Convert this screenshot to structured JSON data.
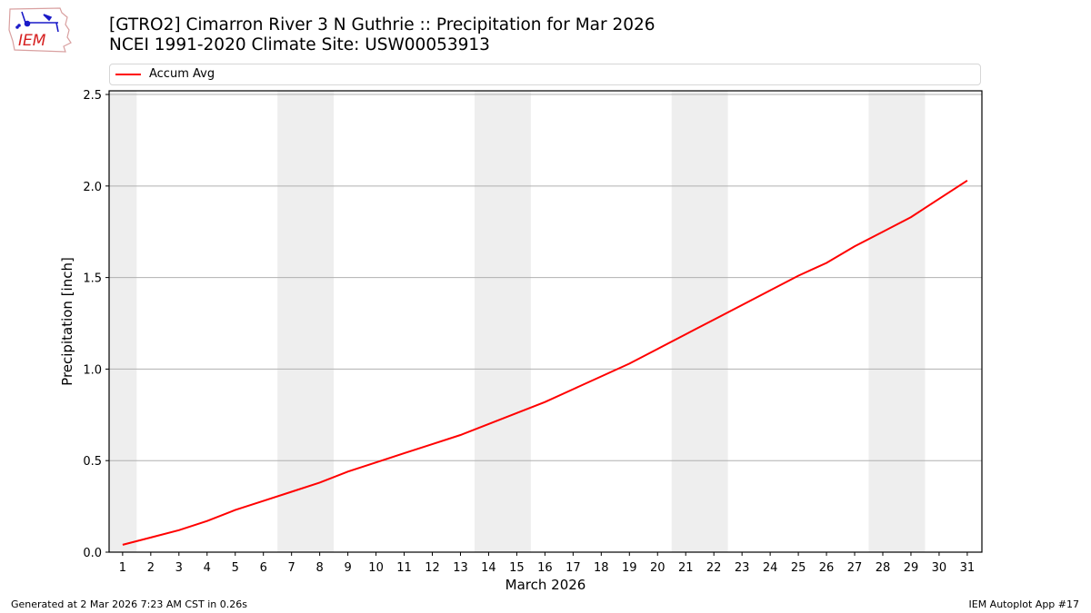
{
  "header": {
    "title_line1": "[GTRO2] Cimarron River 3 N Guthrie :: Precipitation for Mar 2026",
    "title_line2": "NCEI 1991-2020 Climate Site: USW00053913",
    "logo_text": "IEM"
  },
  "legend": {
    "entries": [
      {
        "label": "Accum Avg",
        "color": "#ff0000"
      }
    ]
  },
  "footer": {
    "generated": "Generated at 2 Mar 2026 7:23 AM CST in 0.26s",
    "app": "IEM Autoplot App #17"
  },
  "colors": {
    "line": "#ff0000",
    "weekend_band": "#eeeeee",
    "grid": "#b0b0b0"
  },
  "chart_data": {
    "type": "line",
    "title": "[GTRO2] Cimarron River 3 N Guthrie :: Precipitation for Mar 2026",
    "subtitle": "NCEI 1991-2020 Climate Site: USW00053913",
    "xlabel": "March 2026",
    "ylabel": "Precipitation [inch]",
    "ylim": [
      0,
      2.52
    ],
    "yticks": [
      0.0,
      0.5,
      1.0,
      1.5,
      2.0,
      2.5
    ],
    "ytick_labels": [
      "0.0",
      "0.5",
      "1.0",
      "1.5",
      "2.0",
      "2.5"
    ],
    "x": [
      1,
      2,
      3,
      4,
      5,
      6,
      7,
      8,
      9,
      10,
      11,
      12,
      13,
      14,
      15,
      16,
      17,
      18,
      19,
      20,
      21,
      22,
      23,
      24,
      25,
      26,
      27,
      28,
      29,
      30,
      31
    ],
    "xtick_labels": [
      "1",
      "2",
      "3",
      "4",
      "5",
      "6",
      "7",
      "8",
      "9",
      "10",
      "11",
      "12",
      "13",
      "14",
      "15",
      "16",
      "17",
      "18",
      "19",
      "20",
      "21",
      "22",
      "23",
      "24",
      "25",
      "26",
      "27",
      "28",
      "29",
      "30",
      "31"
    ],
    "grid": "y-only",
    "legend_position": "top, above axes",
    "shaded_weekends": [
      [
        0.5,
        1.5
      ],
      [
        6.5,
        8.5
      ],
      [
        13.5,
        15.5
      ],
      [
        20.5,
        22.5
      ],
      [
        27.5,
        29.5
      ]
    ],
    "series": [
      {
        "name": "Accum Avg",
        "color": "#ff0000",
        "values": [
          0.04,
          0.08,
          0.12,
          0.17,
          0.23,
          0.28,
          0.33,
          0.38,
          0.44,
          0.49,
          0.54,
          0.59,
          0.64,
          0.7,
          0.76,
          0.82,
          0.89,
          0.96,
          1.03,
          1.11,
          1.19,
          1.27,
          1.35,
          1.43,
          1.51,
          1.58,
          1.67,
          1.75,
          1.83,
          1.93,
          2.03
        ]
      }
    ]
  }
}
